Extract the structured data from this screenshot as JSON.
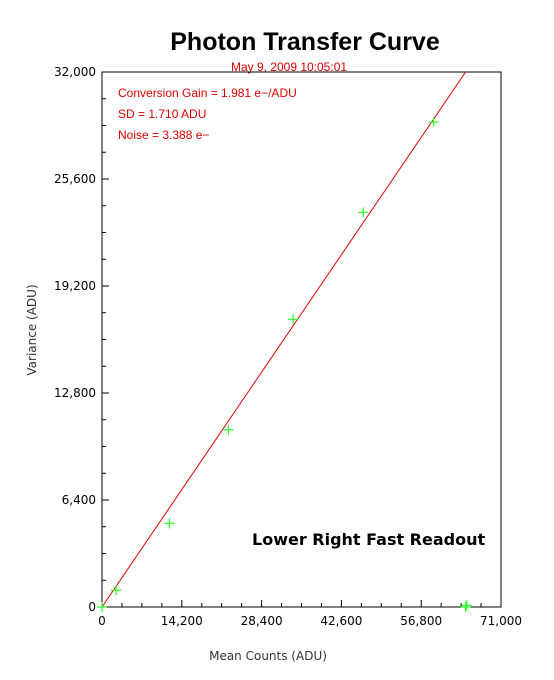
{
  "chart_data": {
    "type": "scatter",
    "title": "Photon Transfer Curve",
    "subtitle": "May 9, 2009  10:05:01",
    "xlabel": "Mean Counts (ADU)",
    "ylabel": "Variance (ADU)",
    "xlim": [
      0,
      71000
    ],
    "ylim": [
      0,
      32000
    ],
    "x_ticks": [
      0,
      14200,
      28400,
      42600,
      56800,
      71000
    ],
    "x_tick_labels": [
      "0",
      "14,200",
      "28,400",
      "42,600",
      "56,800",
      "71,000"
    ],
    "y_ticks": [
      0,
      6400,
      12800,
      19200,
      25600,
      32000
    ],
    "y_tick_labels": [
      "0",
      "6,400",
      "12,800",
      "19,200",
      "25,600",
      "32,000"
    ],
    "grid": false,
    "annotations": [
      "Conversion Gain = 1.981 e−/ADU",
      "SD = 1.710 ADU",
      "Noise = 3.388 e−"
    ],
    "in_plot_label": "Lower Right Fast Readout",
    "series": [
      {
        "marker": "plus",
        "color": "#33ff33",
        "points": [
          {
            "x": 0,
            "y": 0
          },
          {
            "x": 2500,
            "y": 1000
          },
          {
            "x": 12000,
            "y": 5000
          },
          {
            "x": 22500,
            "y": 10600
          },
          {
            "x": 34000,
            "y": 17200
          },
          {
            "x": 46500,
            "y": 23600
          },
          {
            "x": 59000,
            "y": 29000
          },
          {
            "x": 64700,
            "y": 0
          },
          {
            "x": 64900,
            "y": 100
          }
        ]
      }
    ],
    "fit_line": {
      "color": "#dd0000",
      "x": [
        0,
        64700
      ],
      "y": [
        0,
        32000
      ]
    },
    "colors": {
      "text_red": "#dd0000",
      "marker_green": "#33ff33",
      "fit_red": "#dd0000"
    }
  }
}
